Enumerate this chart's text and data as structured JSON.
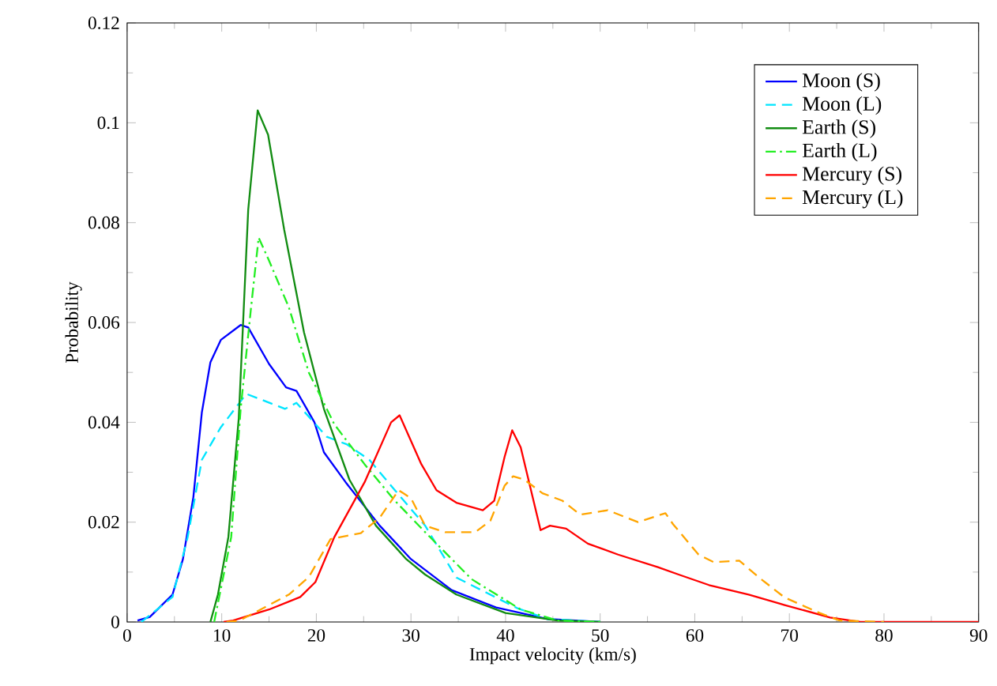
{
  "chart_data": {
    "type": "line",
    "xlabel": "Impact velocity (km/s)",
    "ylabel": "Probability",
    "xlim": [
      0,
      90
    ],
    "ylim": [
      0,
      0.12
    ],
    "xticks": [
      0,
      10,
      20,
      30,
      40,
      50,
      60,
      70,
      80,
      90
    ],
    "yticks": [
      0,
      0.02,
      0.04,
      0.06,
      0.08,
      0.1,
      0.12
    ],
    "legend": "top right",
    "grid": false,
    "marker": "none",
    "series": [
      {
        "name": "Moon (S)",
        "color": "#0000ff",
        "line_style": "solid",
        "x": [
          1.1,
          2.4,
          4.8,
          5.9,
          7.0,
          7.9,
          8.8,
          9.9,
          12.0,
          12.8,
          15.0,
          16.8,
          17.9,
          19.8,
          20.8,
          23.1,
          26.7,
          30.0,
          34.3,
          39.0,
          44.4,
          50.0
        ],
        "values": [
          0.0003,
          0.001,
          0.0055,
          0.0126,
          0.025,
          0.042,
          0.052,
          0.0565,
          0.0595,
          0.059,
          0.0517,
          0.047,
          0.0463,
          0.04,
          0.034,
          0.028,
          0.0193,
          0.0126,
          0.0064,
          0.0029,
          0.0006,
          0
        ]
      },
      {
        "name": "Moon (L)",
        "color": "#00e5ff",
        "line_style": "dashed",
        "x": [
          1.5,
          4.8,
          6.4,
          7.9,
          9.9,
          12.6,
          16.7,
          17.9,
          21.1,
          23.2,
          25.6,
          28.3,
          31.5,
          34.8,
          41.2,
          44.4,
          50.0
        ],
        "values": [
          0,
          0.005,
          0.017,
          0.0325,
          0.039,
          0.0457,
          0.0427,
          0.0439,
          0.0371,
          0.0356,
          0.0325,
          0.0264,
          0.0193,
          0.0089,
          0.0028,
          0.0006,
          0
        ]
      },
      {
        "name": "Earth (S)",
        "color": "#128c12",
        "line_style": "solid",
        "x": [
          8.8,
          9.6,
          10.7,
          11.8,
          12.8,
          13.8,
          14.9,
          16.6,
          18.7,
          20.8,
          23.5,
          26.3,
          29.5,
          31.5,
          34.8,
          40.0,
          45.5,
          50.0
        ],
        "values": [
          0,
          0.0055,
          0.017,
          0.0408,
          0.0826,
          0.1025,
          0.0976,
          0.0786,
          0.058,
          0.0427,
          0.0285,
          0.0193,
          0.0126,
          0.0095,
          0.0055,
          0.0018,
          0.0003,
          0
        ]
      },
      {
        "name": "Earth (L)",
        "color": "#22ee22",
        "line_style": "dashdot",
        "x": [
          9.2,
          11.0,
          12.0,
          13.1,
          13.9,
          15.0,
          17.1,
          19.2,
          21.9,
          25.1,
          28.3,
          31.5,
          36.4,
          41.6,
          45.5,
          50.0
        ],
        "values": [
          0,
          0.017,
          0.0427,
          0.063,
          0.077,
          0.0724,
          0.063,
          0.05,
          0.0396,
          0.0316,
          0.0243,
          0.018,
          0.0086,
          0.0025,
          0.0003,
          0
        ]
      },
      {
        "name": "Mercury (S)",
        "color": "#ff0000",
        "line_style": "solid",
        "x": [
          10.2,
          11.2,
          15.0,
          18.3,
          19.9,
          21.9,
          25.1,
          27.9,
          28.8,
          31.1,
          32.7,
          34.8,
          37.6,
          38.8,
          39.9,
          40.7,
          41.6,
          43.7,
          44.7,
          46.4,
          48.7,
          51.9,
          56.1,
          58.3,
          61.5,
          65.7,
          69.5,
          74.3,
          77.5,
          90.0
        ],
        "values": [
          0,
          0.0003,
          0.0025,
          0.005,
          0.008,
          0.017,
          0.028,
          0.04,
          0.0414,
          0.0316,
          0.0264,
          0.0239,
          0.0224,
          0.0243,
          0.0331,
          0.0384,
          0.035,
          0.0184,
          0.0193,
          0.0187,
          0.0157,
          0.0135,
          0.011,
          0.0095,
          0.0074,
          0.0055,
          0.0034,
          0.0009,
          0,
          0
        ]
      },
      {
        "name": "Mercury (L)",
        "color": "#ffa500",
        "line_style": "dashed",
        "x": [
          10.5,
          11.9,
          17.1,
          19.2,
          21.5,
          24.7,
          26.7,
          28.7,
          30.0,
          31.5,
          33.6,
          36.8,
          38.4,
          39.9,
          40.8,
          42.0,
          43.9,
          46.0,
          47.9,
          50.8,
          54.0,
          56.9,
          57.7,
          60.4,
          62.0,
          64.7,
          66.8,
          69.5,
          73.2,
          75.3,
          80.0
        ],
        "values": [
          0,
          0.0003,
          0.0055,
          0.009,
          0.0166,
          0.0178,
          0.0209,
          0.0264,
          0.0248,
          0.0193,
          0.018,
          0.018,
          0.0203,
          0.0273,
          0.0292,
          0.0285,
          0.0258,
          0.0243,
          0.0215,
          0.0224,
          0.02,
          0.0218,
          0.0196,
          0.0135,
          0.012,
          0.0123,
          0.0089,
          0.0049,
          0.0018,
          0.0003,
          0
        ]
      }
    ]
  }
}
